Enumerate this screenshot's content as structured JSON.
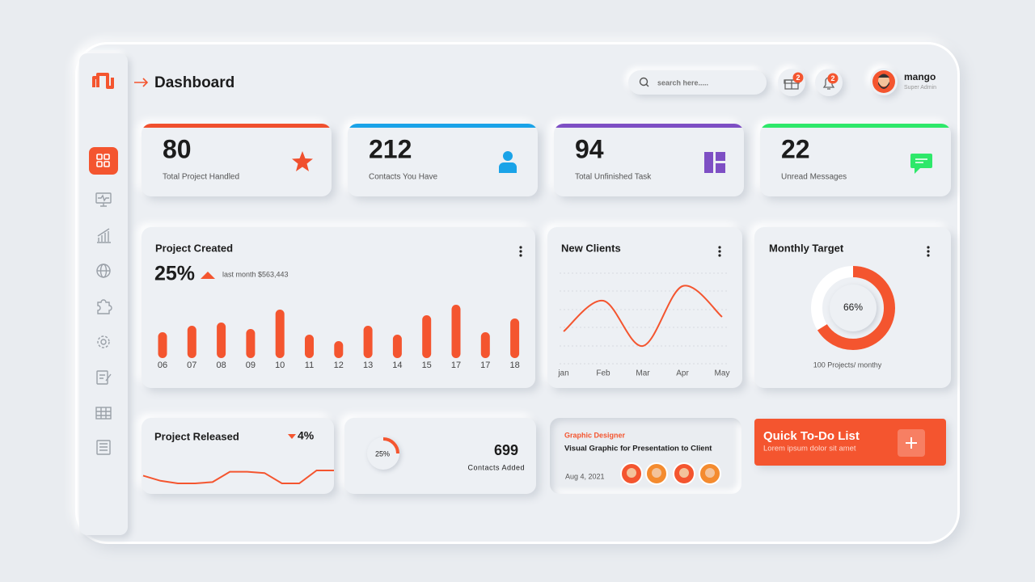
{
  "header": {
    "title": "Dashboard",
    "search_placeholder": "search here.....",
    "gift_badge": 2,
    "notification_badge": 2,
    "user": {
      "name": "mango",
      "role": "Super Admin"
    }
  },
  "stats": [
    {
      "value": 80,
      "label": "Total Project Handled",
      "color": "#f0502e"
    },
    {
      "value": 212,
      "label": "Contacts You Have",
      "color": "#1aa3e8"
    },
    {
      "value": 94,
      "label": "Total Unfinished Task",
      "color": "#7e4fc4"
    },
    {
      "value": 22,
      "label": "Unread Messages",
      "color": "#2ee86a"
    }
  ],
  "project_created": {
    "type": "bar",
    "title": "Project Created",
    "change": "25%",
    "note": "last month $563,443",
    "color": "#f4552f",
    "categories": [
      "06",
      "07",
      "08",
      "09",
      "10",
      "11",
      "12",
      "13",
      "14",
      "15",
      "17",
      "17",
      "18"
    ],
    "values": [
      32,
      40,
      44,
      36,
      60,
      29,
      21,
      40,
      29,
      53,
      66,
      32,
      49
    ]
  },
  "new_clients": {
    "type": "line",
    "title": "New Clients",
    "color": "#f4552f",
    "categories": [
      "jan",
      "Feb",
      "Mar",
      "Apr",
      "May"
    ],
    "values": [
      50,
      88,
      32,
      106,
      68
    ]
  },
  "monthly_target": {
    "title": "Monthly Target",
    "value": 66,
    "value_label": "66%",
    "subtitle": "100 Projects/ monthy",
    "color": "#f4552f"
  },
  "project_released": {
    "type": "line",
    "title": "Project Released",
    "change": "4%",
    "color": "#f4552f",
    "values": [
      12,
      8,
      6,
      6,
      7,
      15,
      15,
      14,
      6,
      6,
      16,
      16
    ]
  },
  "contacts": {
    "value": 25,
    "value_label": "25%",
    "count": 699,
    "label": "Contacts Added",
    "color": "#f4552f"
  },
  "task": {
    "tag": "Graphic Designer",
    "title": "Visual Graphic for Presentation to Client",
    "date": "Aug 4, 2021"
  },
  "todo": {
    "title": "Quick To-Do List",
    "subtitle": "Lorem ipsum dolor sit amet"
  }
}
